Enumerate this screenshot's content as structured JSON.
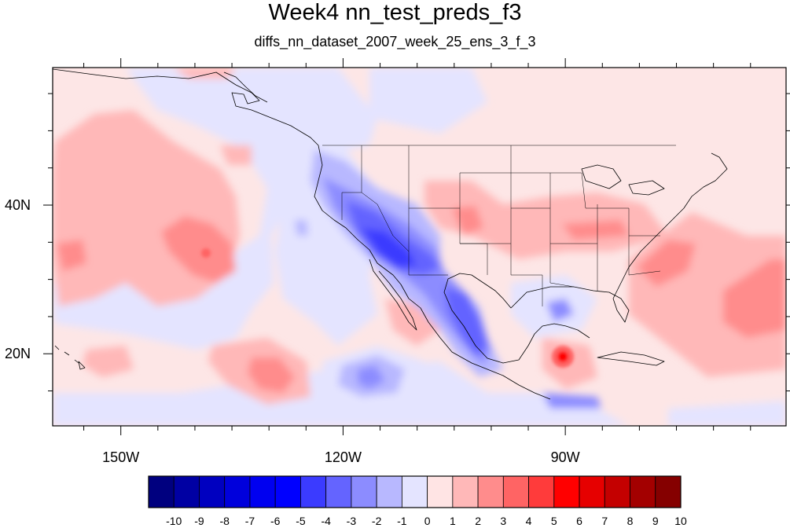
{
  "title": "Week4 nn_test_preds_f3",
  "subtitle": "diffs_nn_dataset_2007_week_25_ens_3_f_3",
  "map": {
    "projection": "cylindrical equidistant",
    "lon_range": [
      -159.2,
      -60.2
    ],
    "lat_range": [
      10.3,
      58.5
    ],
    "lon_ticks": [
      {
        "value": -150,
        "label": "150W"
      },
      {
        "value": -120,
        "label": "120W"
      },
      {
        "value": -90,
        "label": "90W"
      }
    ],
    "lat_ticks": [
      {
        "value": 40,
        "label": "40N"
      },
      {
        "value": 20,
        "label": "20N"
      }
    ],
    "background_value_color": "#fde6e6"
  },
  "colorbar": {
    "labels": [
      "-10",
      "-9",
      "-8",
      "-7",
      "-6",
      "-5",
      "-4",
      "-3",
      "-2",
      "-1",
      "0",
      "1",
      "2",
      "3",
      "4",
      "5",
      "6",
      "7",
      "8",
      "9",
      "10"
    ],
    "colors": [
      "#00007f",
      "#0000a3",
      "#0000c0",
      "#0000dc",
      "#0000f0",
      "#0000ff",
      "#3b3bff",
      "#6464ff",
      "#8c8cff",
      "#b8b8ff",
      "#e4e4ff",
      "#ffe4e4",
      "#ffb8b8",
      "#ff8c8c",
      "#ff6464",
      "#ff3b3b",
      "#ff0000",
      "#e60000",
      "#c40000",
      "#a30000",
      "#850000"
    ]
  }
}
